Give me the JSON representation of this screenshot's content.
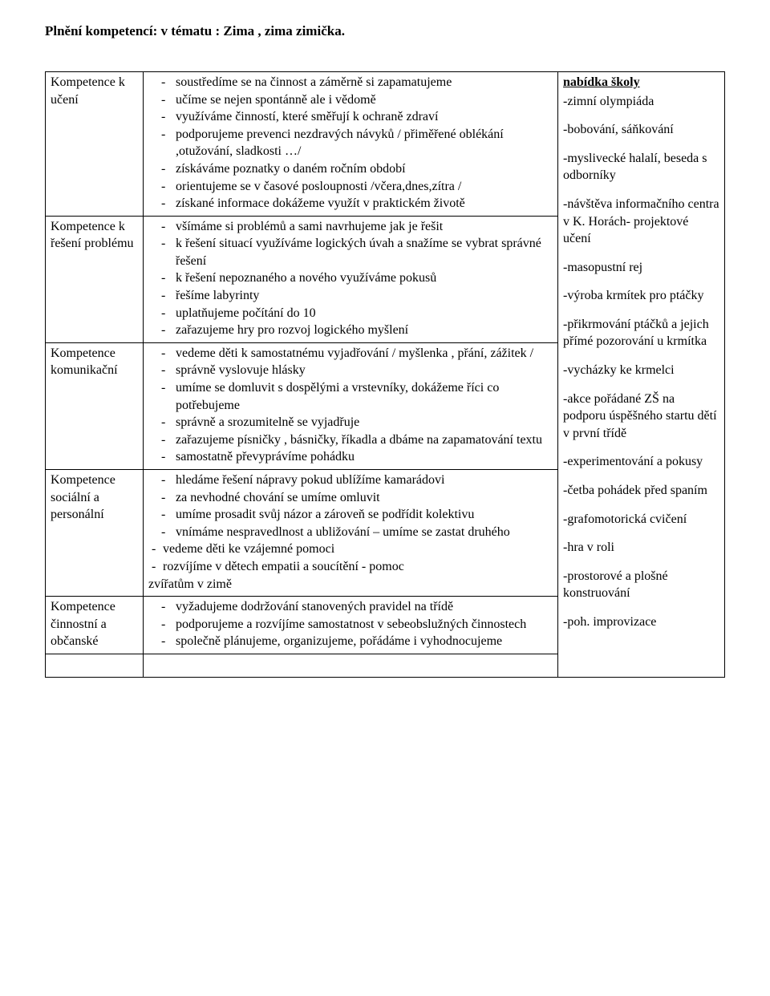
{
  "title": "Plnění kompetencí:  v tématu :  Zima , zima zimička.",
  "rows": [
    {
      "label": "Kompetence k učení",
      "items": [
        "soustředíme se na činnost a záměrně si zapamatujeme",
        "učíme se nejen spontánně ale i vědomě",
        "využíváme činností, které směřují k ochraně zdraví",
        "podporujeme prevenci nezdravých návyků / přiměřené oblékání ,otužování, sladkosti …/",
        "získáváme poznatky  o daném ročním období",
        "orientujeme se v časové posloupnosti /včera,dnes,zítra /",
        "získané informace dokážeme využít v praktickém životě"
      ]
    },
    {
      "label": "Kompetence k řešení problému",
      "items": [
        "všímáme si problémů a sami navrhujeme jak je řešit",
        "k řešení situací využíváme logických úvah a snažíme se vybrat správné řešení",
        "k řešení nepoznaného a nového využíváme pokusů",
        " řešíme labyrinty",
        "uplatňujeme počítání do 10",
        "zařazujeme hry pro rozvoj logického myšlení"
      ]
    },
    {
      "label": "Kompetence komunikační",
      "items": [
        "vedeme děti k samostatnému vyjadřování / myšlenka , přání, zážitek /",
        " správně vyslovuje hlásky",
        "umíme se domluvit s dospělými a vrstevníky, dokážeme říci co potřebujeme",
        "správně a srozumitelně se vyjadřuje",
        "zařazujeme písničky , básničky, říkadla  a dbáme na zapamatování textu",
        "samostatně převyprávíme pohádku"
      ]
    },
    {
      "label": "Kompetence sociální a personální",
      "items": [
        "hledáme řešení nápravy pokud ublížíme kamarádovi",
        "za nevhodné chování se umíme omluvit",
        "umíme prosadit svůj názor a zároveň se podřídit kolektivu",
        "vnímáme nespravedlnost a ubližování – umíme se zastat druhého"
      ],
      "extra": [
        "vedeme děti ke vzájemné pomoci",
        "rozvíjíme v dětech empatii a soucítění - pomoc"
      ],
      "tail": "zvířatům    v zimě"
    },
    {
      "label": "Kompetence činnostní a občanské",
      "items": [
        "vyžadujeme dodržování stanovených pravidel na třídě",
        "podporujeme a rozvíjíme samostatnost v sebeobslužných činnostech",
        " společně plánujeme, organizujeme, pořádáme i vyhodnocujeme"
      ]
    }
  ],
  "offer": {
    "heading": "nabídka školy",
    "items": [
      "-zimní olympiáda",
      "-bobování, sáňkování",
      "-myslivecké halalí, beseda s odborníky",
      "-návštěva informačního centra v K. Horách- projektové učení",
      "-masopustní rej",
      "-výroba krmítek pro ptáčky",
      "-přikrmování ptáčků a jejich přímé pozorování u krmítka",
      "-vycházky ke krmelci",
      "-akce pořádané ZŠ na podporu úspěšného startu dětí v první třídě",
      "-experimentování a pokusy",
      "-četba pohádek před spaním",
      "-grafomotorická cvičení",
      "-hra v roli",
      "-prostorové a plošné konstruování",
      "-poh. improvizace"
    ]
  }
}
